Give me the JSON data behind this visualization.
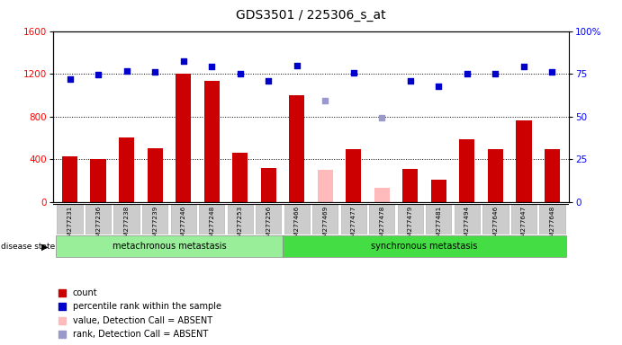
{
  "title": "GDS3501 / 225306_s_at",
  "samples": [
    "GSM277231",
    "GSM277236",
    "GSM277238",
    "GSM277239",
    "GSM277246",
    "GSM277248",
    "GSM277253",
    "GSM277256",
    "GSM277466",
    "GSM277469",
    "GSM277477",
    "GSM277478",
    "GSM277479",
    "GSM277481",
    "GSM277494",
    "GSM277646",
    "GSM277647",
    "GSM277648"
  ],
  "counts": [
    430,
    400,
    600,
    500,
    1200,
    1130,
    460,
    320,
    1000,
    null,
    490,
    null,
    310,
    210,
    590,
    490,
    760,
    490
  ],
  "counts_absent": [
    null,
    null,
    null,
    null,
    null,
    null,
    null,
    null,
    null,
    300,
    null,
    130,
    null,
    null,
    null,
    null,
    null,
    null
  ],
  "percentile_ranks_left": [
    1150,
    1190,
    1230,
    1220,
    1320,
    1270,
    1200,
    1130,
    1280,
    null,
    1210,
    null,
    1130,
    1080,
    1200,
    1200,
    1270,
    1215
  ],
  "percentile_ranks_left_absent": [
    null,
    null,
    null,
    null,
    null,
    null,
    null,
    null,
    null,
    950,
    null,
    790,
    null,
    null,
    null,
    null,
    null,
    null
  ],
  "group1_count": 8,
  "group2_count": 10,
  "group1_label": "metachronous metastasis",
  "group2_label": "synchronous metastasis",
  "disease_state_label": "disease state",
  "ylim_left": [
    0,
    1600
  ],
  "ylim_right": [
    0,
    100
  ],
  "yticks_left": [
    0,
    400,
    800,
    1200,
    1600
  ],
  "yticks_right": [
    0,
    25,
    50,
    75,
    100
  ],
  "bar_color": "#cc0000",
  "bar_color_absent": "#ffbbbb",
  "dot_color": "#0000cc",
  "dot_color_absent": "#9999cc",
  "group1_color": "#99ee99",
  "group2_color": "#44dd44",
  "legend_items": [
    {
      "label": "count",
      "color": "#cc0000"
    },
    {
      "label": "percentile rank within the sample",
      "color": "#0000cc"
    },
    {
      "label": "value, Detection Call = ABSENT",
      "color": "#ffbbbb"
    },
    {
      "label": "rank, Detection Call = ABSENT",
      "color": "#9999cc"
    }
  ]
}
